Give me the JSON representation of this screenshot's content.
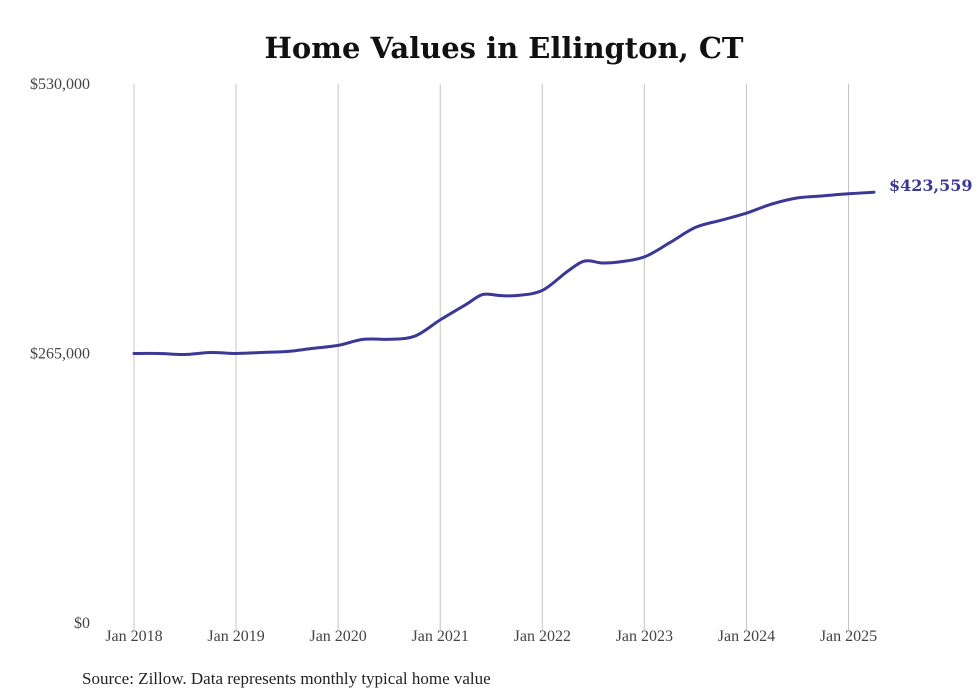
{
  "chart_data": {
    "type": "line",
    "title": "Home Values in Ellington, CT",
    "source": "Source: Zillow. Data represents monthly typical home value",
    "ylim": [
      0,
      530000
    ],
    "y_ticks": [
      {
        "value": 0,
        "label": "$0"
      },
      {
        "value": 265000,
        "label": "$265,000"
      },
      {
        "value": 530000,
        "label": "$530,000"
      }
    ],
    "x_ticks": [
      {
        "value": "2018-01",
        "label": "Jan 2018"
      },
      {
        "value": "2019-01",
        "label": "Jan 2019"
      },
      {
        "value": "2020-01",
        "label": "Jan 2020"
      },
      {
        "value": "2021-01",
        "label": "Jan 2021"
      },
      {
        "value": "2022-01",
        "label": "Jan 2022"
      },
      {
        "value": "2023-01",
        "label": "Jan 2023"
      },
      {
        "value": "2024-01",
        "label": "Jan 2024"
      },
      {
        "value": "2025-01",
        "label": "Jan 2025"
      }
    ],
    "grid": {
      "vertical": true,
      "horizontal": false
    },
    "line_color": "#3b3896",
    "end_label": "$423,559",
    "series": [
      {
        "x": [
          "2018-01",
          "2018-04",
          "2018-07",
          "2018-10",
          "2019-01",
          "2019-04",
          "2019-07",
          "2019-10",
          "2020-01",
          "2020-04",
          "2020-07",
          "2020-10",
          "2021-01",
          "2021-04",
          "2021-06",
          "2021-08",
          "2021-10",
          "2022-01",
          "2022-04",
          "2022-06",
          "2022-08",
          "2022-10",
          "2023-01",
          "2023-04",
          "2023-07",
          "2023-10",
          "2024-01",
          "2024-04",
          "2024-07",
          "2024-10",
          "2025-01",
          "2025-04"
        ],
        "values": [
          265000,
          265000,
          264000,
          266000,
          265000,
          266000,
          267000,
          270000,
          273000,
          279000,
          279000,
          282000,
          298000,
          313000,
          323000,
          322000,
          322000,
          327000,
          346000,
          356000,
          354000,
          355000,
          360000,
          374000,
          389000,
          396000,
          403000,
          412000,
          418000,
          420000,
          422000,
          423559
        ]
      }
    ]
  }
}
